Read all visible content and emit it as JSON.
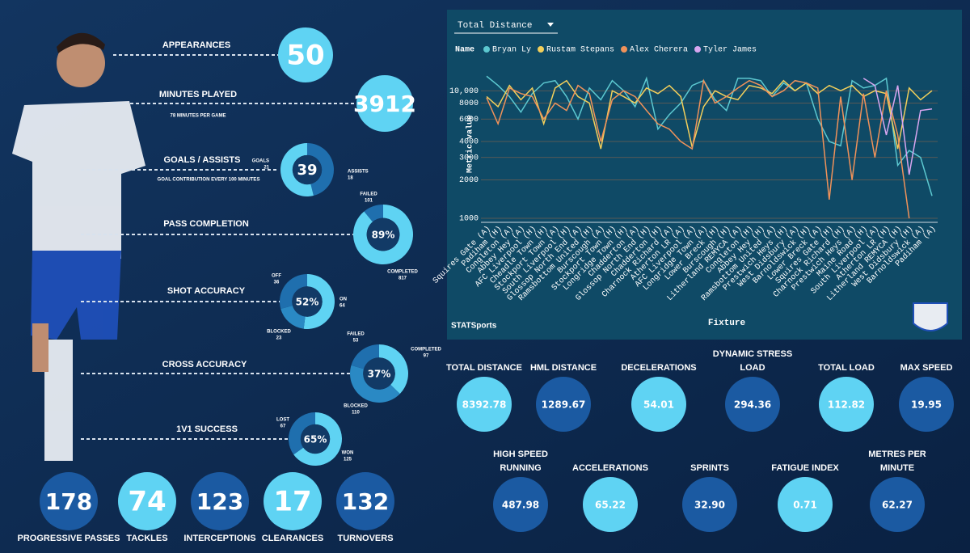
{
  "left": {
    "appearances": {
      "label": "APPEARANCES",
      "value": "50"
    },
    "minutes": {
      "label": "MINUTES PLAYED",
      "value": "3912",
      "caption": "78 MINUTES PER GAME"
    },
    "donuts": [
      {
        "label": "GOALS / ASSISTS",
        "center": "39",
        "caption": "GOAL CONTRIBUTION EVERY 100 MINUTES",
        "segments": [
          {
            "name": "ASSISTS",
            "value": 18,
            "color": "#1f6fae"
          },
          {
            "name": "GOALS",
            "value": 21,
            "color": "#5fd3f3"
          }
        ]
      },
      {
        "label": "PASS COMPLETION",
        "center": "89%",
        "segments": [
          {
            "name": "COMPLETED",
            "value": 817,
            "color": "#5fd3f3"
          },
          {
            "name": "FAILED",
            "value": 101,
            "color": "#1f6fae"
          }
        ]
      },
      {
        "label": "SHOT ACCURACY",
        "center": "52%",
        "segments": [
          {
            "name": "ON",
            "value": 64,
            "color": "#5fd3f3"
          },
          {
            "name": "BLOCKED",
            "value": 23,
            "color": "#2a89c4"
          },
          {
            "name": "OFF",
            "value": 36,
            "color": "#1f6fae"
          }
        ]
      },
      {
        "label": "CROSS ACCURACY",
        "center": "37%",
        "segments": [
          {
            "name": "COMPLETED",
            "value": 97,
            "color": "#5fd3f3"
          },
          {
            "name": "BLOCKED",
            "value": 110,
            "color": "#2a89c4"
          },
          {
            "name": "FAILED",
            "value": 53,
            "color": "#1f6fae"
          }
        ]
      },
      {
        "label": "1V1 SUCCESS",
        "center": "65%",
        "segments": [
          {
            "name": "WON",
            "value": 125,
            "color": "#5fd3f3"
          },
          {
            "name": "LOST",
            "value": 67,
            "color": "#1f6fae"
          }
        ]
      }
    ],
    "bottom": [
      {
        "label": "PROGRESSIVE PASSES",
        "value": "178"
      },
      {
        "label": "TACKLES",
        "value": "74"
      },
      {
        "label": "INTERCEPTIONS",
        "value": "123"
      },
      {
        "label": "CLEARANCES",
        "value": "17"
      },
      {
        "label": "TURNOVERS",
        "value": "132"
      }
    ]
  },
  "chart_data": {
    "type": "line",
    "selector": "Total Distance",
    "legend_title": "Name",
    "xlabel": "Fixture",
    "ylabel": "Metric value",
    "brand": "STATSports",
    "yscale": "log",
    "grid": true,
    "ylim": [
      930,
      16000
    ],
    "yticks": [
      1000,
      2000,
      3000,
      4000,
      6000,
      8000,
      {
        "value": 10000,
        "label": "10,000"
      }
    ],
    "categories": [
      "Squires Gate (A)",
      "Padiham (H)",
      "Congleton (A)",
      "Abbey Hey (A)",
      "AFC Liverpool (H)",
      "Cheadle Town (H)",
      "Stockport Town (A)",
      "South Liverpool (H)",
      "Glossop North End (A)",
      "Ramsbottom United (H)",
      "Burscough (A)",
      "Stockport Town (H)",
      "Longridge Town (H)",
      "Chadderton (A)",
      "Glossop North End (H)",
      "Chadderton (H)",
      "Charnock Richard (A)",
      "Atherton LR (A)",
      "AFC Liverpool (A)",
      "Longridge Town (A)",
      "Lower Breck (H)",
      "Burscough (H)",
      "Litherland REMYCA (A)",
      "Congleton (H)",
      "Abbey Hey (H)",
      "Ramsbottom United (A)",
      "Prestwich Heys (H)",
      "West Didsbury (A)",
      "Barnoldswick (H)",
      "Lower Breck (A)",
      "Squires Gate (H)",
      "Charnock Richard (H)",
      "Prestwich Heys (A)",
      "Maine Road (H)",
      "South Liverpool (A)",
      "Atherton LR (H)",
      "Litherland REMYCA (H)",
      "West Didsbury (H)",
      "Barnoldswick (A)",
      "Padiham (A)"
    ],
    "series": [
      {
        "name": "Bryan Ly",
        "color": "#5cc8d0",
        "values": [
          13000,
          11000,
          9000,
          6800,
          9500,
          11500,
          12000,
          9000,
          6000,
          10500,
          8500,
          12000,
          10000,
          7500,
          12500,
          5000,
          6500,
          8000,
          11000,
          12000,
          8500,
          7000,
          12500,
          12500,
          12000,
          9000,
          11500,
          10000,
          11500,
          6000,
          4000,
          3700,
          12000,
          10500,
          11000,
          12500,
          2600,
          3400,
          3000,
          1500
        ]
      },
      {
        "name": "Rustam Stepans",
        "color": "#f2cf5b",
        "values": [
          9000,
          7500,
          11000,
          8500,
          10500,
          5500,
          10500,
          12000,
          9000,
          8000,
          3500,
          10000,
          9000,
          8000,
          10500,
          9500,
          11000,
          9000,
          3600,
          7500,
          10000,
          9000,
          8500,
          11000,
          10500,
          9500,
          12000,
          10000,
          11500,
          9500,
          11000,
          10000,
          11000,
          9000,
          10000,
          9500,
          3500,
          10500,
          8500,
          10000
        ]
      },
      {
        "name": "Alex Cherera",
        "color": "#f0925a",
        "values": [
          8800,
          5500,
          10500,
          9500,
          9000,
          6000,
          8000,
          7000,
          11000,
          9500,
          4000,
          8500,
          10000,
          9000,
          7000,
          5500,
          5000,
          4000,
          3500,
          12000,
          8000,
          9000,
          10500,
          12000,
          11000,
          9000,
          10000,
          12000,
          11500,
          10500,
          1400,
          9000,
          2000,
          9500,
          3000,
          10000,
          4500,
          1000,
          null,
          null
        ]
      },
      {
        "name": "Tyler James",
        "color": "#d8a6f0",
        "values": [
          null,
          null,
          null,
          null,
          null,
          null,
          null,
          null,
          null,
          null,
          null,
          null,
          null,
          null,
          null,
          null,
          null,
          null,
          null,
          null,
          null,
          null,
          null,
          null,
          null,
          null,
          null,
          null,
          null,
          null,
          null,
          null,
          null,
          12500,
          11000,
          4500,
          11000,
          2200,
          7000,
          7200
        ]
      }
    ]
  },
  "metrics": [
    {
      "label": "TOTAL DISTANCE",
      "value": "8392.78"
    },
    {
      "label": "HML DISTANCE",
      "value": "1289.67"
    },
    {
      "label": "DECELERATIONS",
      "value": "54.01"
    },
    {
      "label": "DYNAMIC STRESS LOAD",
      "value": "294.36"
    },
    {
      "label": "TOTAL LOAD",
      "value": "112.82"
    },
    {
      "label": "MAX SPEED",
      "value": "19.95"
    },
    {
      "label": "HIGH SPEED RUNNING",
      "value": "487.98"
    },
    {
      "label": "ACCELERATIONS",
      "value": "65.22"
    },
    {
      "label": "SPRINTS",
      "value": "32.90"
    },
    {
      "label": "FATIGUE INDEX",
      "value": "0.71"
    },
    {
      "label": "METRES PER MINUTE",
      "value": "62.27"
    }
  ]
}
